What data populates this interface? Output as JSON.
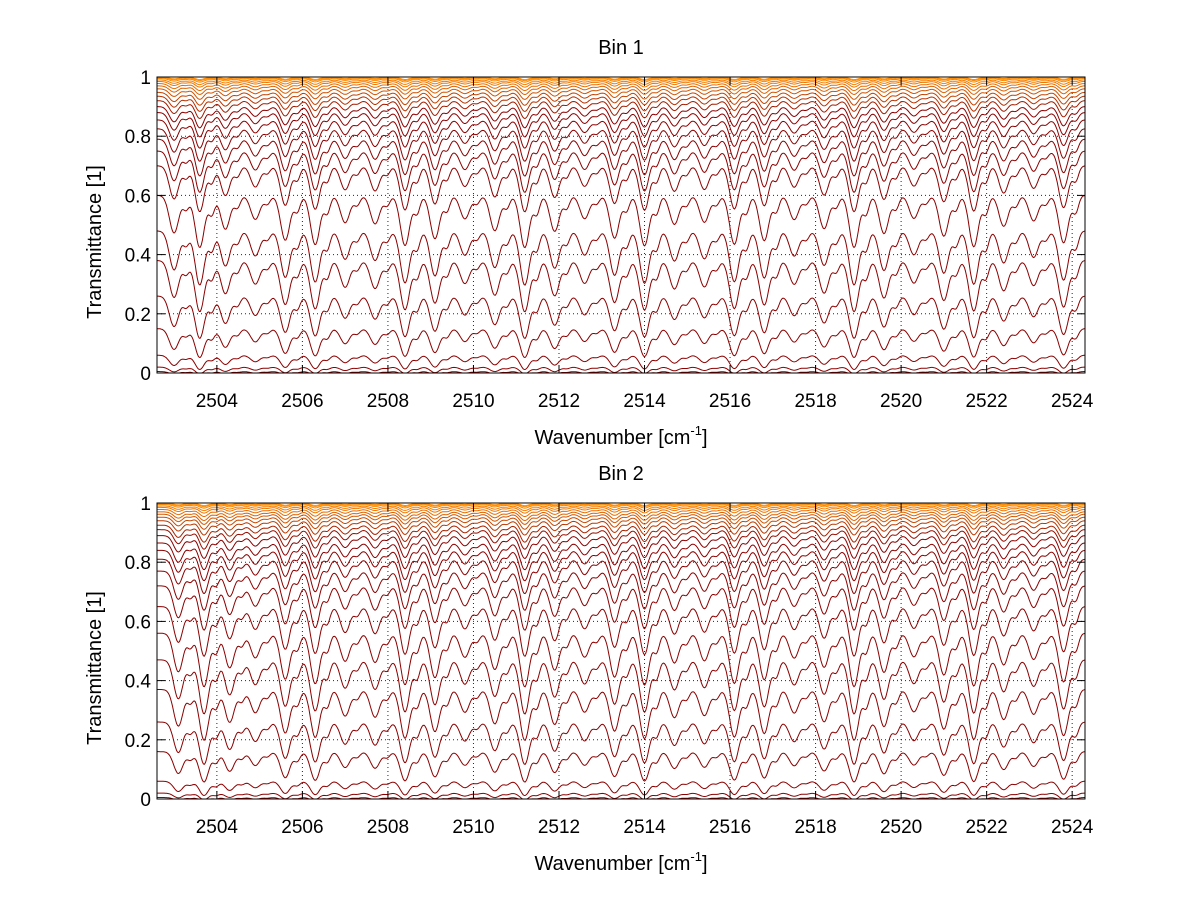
{
  "chart_data": [
    {
      "type": "line",
      "title": "Bin 1",
      "xlabel": "Wavenumber [cm",
      "xlabel_superscript": "-1",
      "xlabel_suffix": "]",
      "ylabel": "Transmittance [1]",
      "xlim": [
        2502.6,
        2524.3
      ],
      "ylim": [
        0,
        1
      ],
      "xticks": [
        2504,
        2506,
        2508,
        2510,
        2512,
        2514,
        2516,
        2518,
        2520,
        2522,
        2524
      ],
      "yticks": [
        0,
        0.2,
        0.4,
        0.6,
        0.8,
        1
      ],
      "ytick_labels": [
        "0",
        "0.2",
        "0.4",
        "0.6",
        "0.8",
        "1"
      ],
      "grid": true,
      "line_peaks": [
        1,
        0.998,
        0.995,
        0.99,
        0.985,
        0.978,
        0.97,
        0.96,
        0.948,
        0.935,
        0.92,
        0.9,
        0.88,
        0.855,
        0.825,
        0.79,
        0.75,
        0.7,
        0.6,
        0.48,
        0.38,
        0.26,
        0.15,
        0.06,
        0.02,
        0.005
      ],
      "absorption_lines": [
        2503.0,
        2503.6,
        2504.2,
        2504.9,
        2505.6,
        2506.3,
        2507.0,
        2507.7,
        2508.4,
        2509.1,
        2509.8,
        2510.5,
        2511.2,
        2511.9,
        2512.6,
        2513.3,
        2514.0,
        2514.7,
        2515.4,
        2516.1,
        2516.8,
        2517.5,
        2518.2,
        2518.9,
        2519.6,
        2520.3,
        2521.0,
        2521.7,
        2522.4,
        2523.1,
        2523.8
      ],
      "line_color_dark": "#8b0000",
      "line_color_light": "#ff8c00"
    },
    {
      "type": "line",
      "title": "Bin 2",
      "xlabel": "Wavenumber [cm",
      "xlabel_superscript": "-1",
      "xlabel_suffix": "]",
      "ylabel": "Transmittance [1]",
      "xlim": [
        2502.6,
        2524.3
      ],
      "ylim": [
        0,
        1
      ],
      "xticks": [
        2504,
        2506,
        2508,
        2510,
        2512,
        2514,
        2516,
        2518,
        2520,
        2522,
        2524
      ],
      "yticks": [
        0,
        0.2,
        0.4,
        0.6,
        0.8,
        1
      ],
      "ytick_labels": [
        "0",
        "0.2",
        "0.4",
        "0.6",
        "0.8",
        "1"
      ],
      "grid": true,
      "line_peaks": [
        1,
        0.998,
        0.995,
        0.99,
        0.985,
        0.978,
        0.97,
        0.962,
        0.952,
        0.94,
        0.925,
        0.91,
        0.89,
        0.865,
        0.84,
        0.81,
        0.77,
        0.72,
        0.65,
        0.56,
        0.47,
        0.37,
        0.26,
        0.16,
        0.06,
        0.02,
        0.005
      ],
      "absorption_lines": [
        2503.1,
        2503.7,
        2504.3,
        2504.9,
        2505.6,
        2506.3,
        2507.0,
        2507.7,
        2508.4,
        2509.1,
        2509.8,
        2510.5,
        2511.2,
        2511.9,
        2512.6,
        2513.3,
        2514.0,
        2514.7,
        2515.4,
        2516.1,
        2516.8,
        2517.5,
        2518.2,
        2518.9,
        2519.6,
        2520.3,
        2521.0,
        2521.7,
        2522.4,
        2523.1,
        2523.8
      ],
      "line_color_dark": "#8b0000",
      "line_color_light": "#ff8c00"
    }
  ]
}
